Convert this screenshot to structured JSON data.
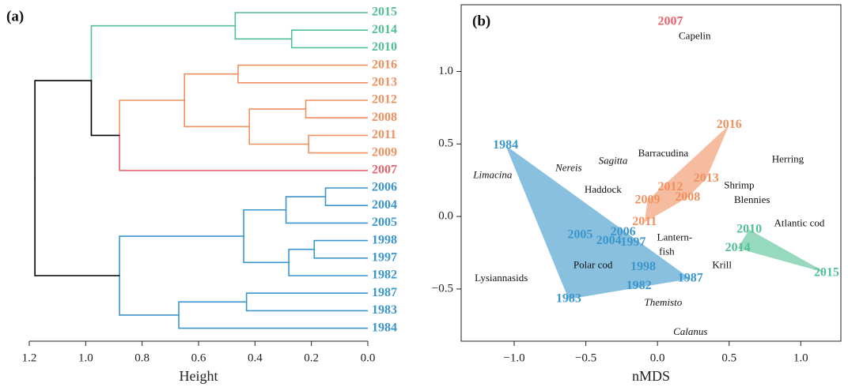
{
  "chart_data": [
    {
      "type": "dendrogram",
      "panel_label": "(a)",
      "xlabel": "Height",
      "xlim": [
        1.2,
        0
      ],
      "xticks": [
        1.2,
        {
          "value": 1,
          "label": "1.0"
        },
        0.8,
        0.6,
        0.4,
        0.2,
        {
          "value": 0,
          "label": "0.0"
        }
      ],
      "tree": {
        "height": 1.18,
        "children": [
          {
            "height": 0.98,
            "color": "#000000",
            "children": [
              {
                "height": 0.47,
                "color": "#52bf94",
                "children": [
                  {
                    "label": "2015",
                    "color": "#52bf94"
                  },
                  {
                    "height": 0.27,
                    "color": "#52bf94",
                    "children": [
                      {
                        "label": "2014",
                        "color": "#52bf94"
                      },
                      {
                        "label": "2010",
                        "color": "#52bf94"
                      }
                    ]
                  }
                ]
              },
              {
                "height": 0.88,
                "color": "#000000",
                "children": [
                  {
                    "height": 0.65,
                    "color": "#f0905f",
                    "children": [
                      {
                        "height": 0.46,
                        "color": "#f0905f",
                        "children": [
                          {
                            "label": "2016",
                            "color": "#f0905f"
                          },
                          {
                            "label": "2013",
                            "color": "#f0905f"
                          }
                        ]
                      },
                      {
                        "height": 0.42,
                        "color": "#f0905f",
                        "children": [
                          {
                            "height": 0.22,
                            "color": "#f0905f",
                            "children": [
                              {
                                "label": "2012",
                                "color": "#f0905f"
                              },
                              {
                                "label": "2008",
                                "color": "#f0905f"
                              }
                            ]
                          },
                          {
                            "height": 0.21,
                            "color": "#f0905f",
                            "children": [
                              {
                                "label": "2011",
                                "color": "#f0905f"
                              },
                              {
                                "label": "2009",
                                "color": "#f0905f"
                              }
                            ]
                          }
                        ]
                      }
                    ]
                  },
                  {
                    "label": "2007",
                    "color": "#e8646e"
                  }
                ]
              }
            ]
          },
          {
            "height": 0.88,
            "color": "#000000",
            "children": [
              {
                "height": 0.44,
                "color": "#3b96cc",
                "children": [
                  {
                    "height": 0.29,
                    "color": "#3b96cc",
                    "children": [
                      {
                        "height": 0.15,
                        "color": "#3b96cc",
                        "children": [
                          {
                            "label": "2006",
                            "color": "#3b96cc"
                          },
                          {
                            "label": "2004",
                            "color": "#3b96cc"
                          }
                        ]
                      },
                      {
                        "label": "2005",
                        "color": "#3b96cc"
                      }
                    ]
                  },
                  {
                    "height": 0.28,
                    "color": "#3b96cc",
                    "children": [
                      {
                        "height": 0.19,
                        "color": "#3b96cc",
                        "children": [
                          {
                            "label": "1998",
                            "color": "#3b96cc"
                          },
                          {
                            "label": "1997",
                            "color": "#3b96cc"
                          }
                        ]
                      },
                      {
                        "label": "1982",
                        "color": "#3b96cc"
                      }
                    ]
                  }
                ]
              },
              {
                "height": 0.67,
                "color": "#3b96cc",
                "children": [
                  {
                    "height": 0.43,
                    "color": "#3b96cc",
                    "children": [
                      {
                        "label": "1987",
                        "color": "#3b96cc"
                      },
                      {
                        "label": "1983",
                        "color": "#3b96cc"
                      }
                    ]
                  },
                  {
                    "label": "1984",
                    "color": "#3b96cc"
                  }
                ]
              }
            ]
          }
        ]
      }
    },
    {
      "type": "scatter",
      "panel_label": "(b)",
      "xlabel": "nMDS",
      "xlim": [
        -1.37,
        1.28
      ],
      "ylim": [
        -0.86,
        1.46
      ],
      "xticks": [
        {
          "value": -1,
          "label": "−1.0"
        },
        {
          "value": -0.5,
          "label": "−0.5"
        },
        {
          "value": 0,
          "label": "0.0"
        },
        0.5,
        {
          "value": 1,
          "label": "1.0"
        }
      ],
      "yticks": [
        {
          "value": -0.5,
          "label": "−0.5"
        },
        {
          "value": 0,
          "label": "0.0"
        },
        0.5,
        {
          "value": 1,
          "label": "1.0"
        }
      ],
      "groups": [
        {
          "color": "#3b96cc",
          "points": [
            {
              "label": "1984",
              "x": -1.06,
              "y": 0.49
            },
            {
              "label": "1983",
              "x": -0.62,
              "y": -0.57
            },
            {
              "label": "1987",
              "x": 0.23,
              "y": -0.43
            },
            {
              "label": "1982",
              "x": -0.13,
              "y": -0.48
            },
            {
              "label": "1998",
              "x": -0.1,
              "y": -0.35
            },
            {
              "label": "2005",
              "x": -0.54,
              "y": -0.13
            },
            {
              "label": "2006",
              "x": -0.24,
              "y": -0.11
            },
            {
              "label": "2004",
              "x": -0.34,
              "y": -0.17
            },
            {
              "label": "1997",
              "x": -0.17,
              "y": -0.18
            }
          ]
        },
        {
          "color": "#f0905f",
          "points": [
            {
              "label": "2016",
              "x": 0.5,
              "y": 0.63
            },
            {
              "label": "2013",
              "x": 0.34,
              "y": 0.26
            },
            {
              "label": "2012",
              "x": 0.09,
              "y": 0.2
            },
            {
              "label": "2009",
              "x": -0.07,
              "y": 0.11
            },
            {
              "label": "2008",
              "x": 0.21,
              "y": 0.13
            },
            {
              "label": "2011",
              "x": -0.09,
              "y": -0.04
            }
          ]
        },
        {
          "color": "#52bf94",
          "points": [
            {
              "label": "2010",
              "x": 0.64,
              "y": -0.09
            },
            {
              "label": "2014",
              "x": 0.56,
              "y": -0.22
            },
            {
              "label": "2015",
              "x": 1.18,
              "y": -0.39
            }
          ]
        },
        {
          "color": "#e8646e",
          "points": [
            {
              "label": "2007",
              "x": 0.09,
              "y": 1.34
            }
          ]
        }
      ],
      "species": [
        {
          "name": "Capelin",
          "x": 0.26,
          "y": 1.24
        },
        {
          "name": "Herring",
          "x": 0.91,
          "y": 0.39
        },
        {
          "name": "Limacina",
          "x": -1.15,
          "y": 0.28,
          "italic": true
        },
        {
          "name": "Nereis",
          "x": -0.62,
          "y": 0.33,
          "italic": true
        },
        {
          "name": "Sagitta",
          "x": -0.31,
          "y": 0.38,
          "italic": true
        },
        {
          "name": "Barracudina",
          "x": 0.04,
          "y": 0.43
        },
        {
          "name": "Haddock",
          "x": -0.38,
          "y": 0.18
        },
        {
          "name": "Shrimp",
          "x": 0.57,
          "y": 0.21
        },
        {
          "name": "Blennies",
          "x": 0.66,
          "y": 0.11
        },
        {
          "name": [
            "Lantern-",
            "fish"
          ],
          "x": 0.12,
          "y": -0.15
        },
        {
          "name": "Atlantic cod",
          "x": 0.99,
          "y": -0.05
        },
        {
          "name": "Polar cod",
          "x": -0.45,
          "y": -0.34
        },
        {
          "name": "Krill",
          "x": 0.45,
          "y": -0.34
        },
        {
          "name": "Lysiannasids",
          "x": -1.09,
          "y": -0.43
        },
        {
          "name": "Themisto",
          "x": 0.04,
          "y": -0.6,
          "italic": true
        },
        {
          "name": "Calanus",
          "x": 0.23,
          "y": -0.8,
          "italic": true
        }
      ]
    }
  ]
}
